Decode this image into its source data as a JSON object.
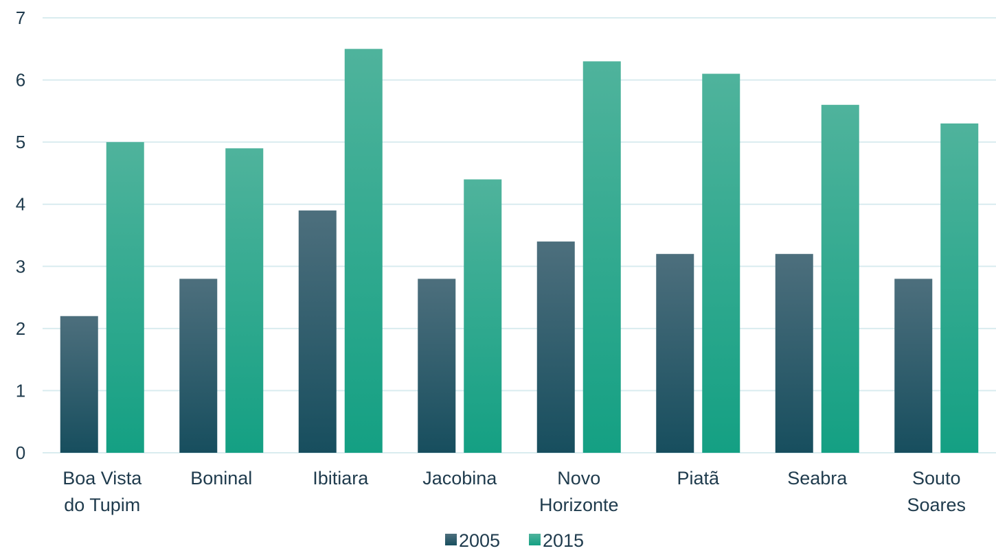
{
  "chart_data": {
    "type": "bar",
    "categories": [
      [
        "Boa Vista",
        "do Tupim"
      ],
      [
        "Boninal"
      ],
      [
        "Ibitiara"
      ],
      [
        "Jacobina"
      ],
      [
        "Novo",
        "Horizonte"
      ],
      [
        "Piatã"
      ],
      [
        "Seabra"
      ],
      [
        "Souto",
        "Soares"
      ]
    ],
    "series": [
      {
        "name": "2005",
        "values": [
          2.2,
          2.8,
          3.9,
          2.8,
          3.4,
          3.2,
          3.2,
          2.8
        ],
        "color_top": "#4d6f7d",
        "color_bottom": "#174e5e"
      },
      {
        "name": "2015",
        "values": [
          5.0,
          4.9,
          6.5,
          4.4,
          6.3,
          6.1,
          5.6,
          5.3
        ],
        "color_top": "#4fb39c",
        "color_bottom": "#14a083"
      }
    ],
    "ylim": [
      0,
      7
    ],
    "yticks": [
      0,
      1,
      2,
      3,
      4,
      5,
      6,
      7
    ],
    "grid": true,
    "grid_color": "#d9ecef",
    "legend": "bottom"
  }
}
